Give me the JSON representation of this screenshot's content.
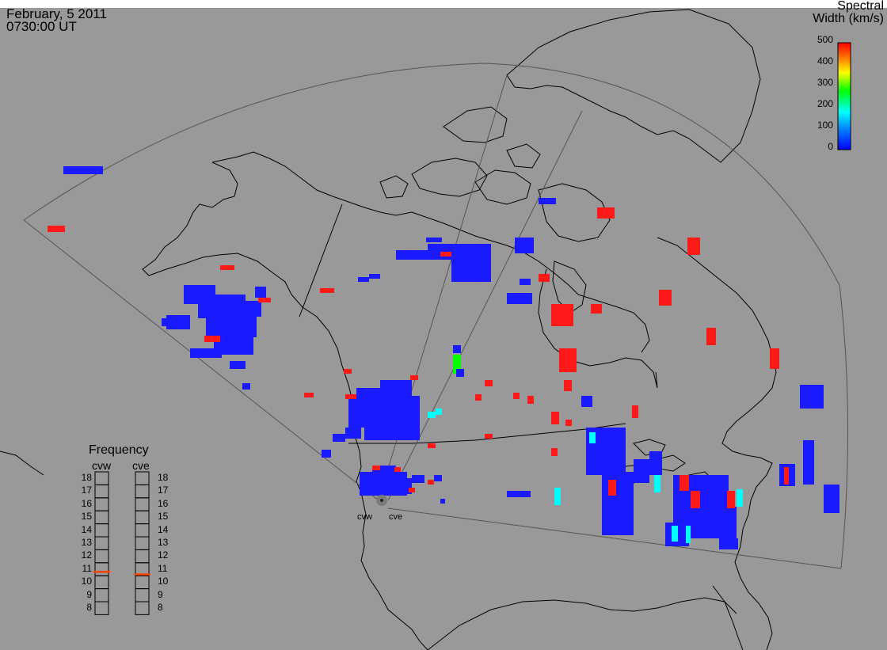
{
  "header": {
    "date": "February, 5 2011",
    "time": "0730:00 UT"
  },
  "colorbar": {
    "title_line1": "Spectral",
    "title_line2": "Width (km/s)",
    "ticks": [
      "500",
      "400",
      "300",
      "200",
      "100",
      "0"
    ],
    "colors": [
      "#ff0000",
      "#ff8000",
      "#ffff00",
      "#00ff00",
      "#00ffff",
      "#0000ff"
    ]
  },
  "frequency_panel": {
    "title": "Frequency",
    "radars": [
      {
        "name": "cvw",
        "selected_mhz": 10.8
      },
      {
        "name": "cve",
        "selected_mhz": 10.6
      }
    ],
    "scale": [
      "18",
      "17",
      "16",
      "15",
      "14",
      "13",
      "12",
      "11",
      "10",
      "9",
      "8"
    ],
    "marker_color": "#ff4400"
  },
  "sites": [
    {
      "label": "cvw"
    },
    {
      "label": "cve"
    }
  ],
  "colors": {
    "background": "#999999",
    "low_width": "#1a1aff",
    "high_width": "#ff1a1a",
    "mid_width": "#00ffff",
    "fov_line": "#555555",
    "coast": "#000000"
  }
}
